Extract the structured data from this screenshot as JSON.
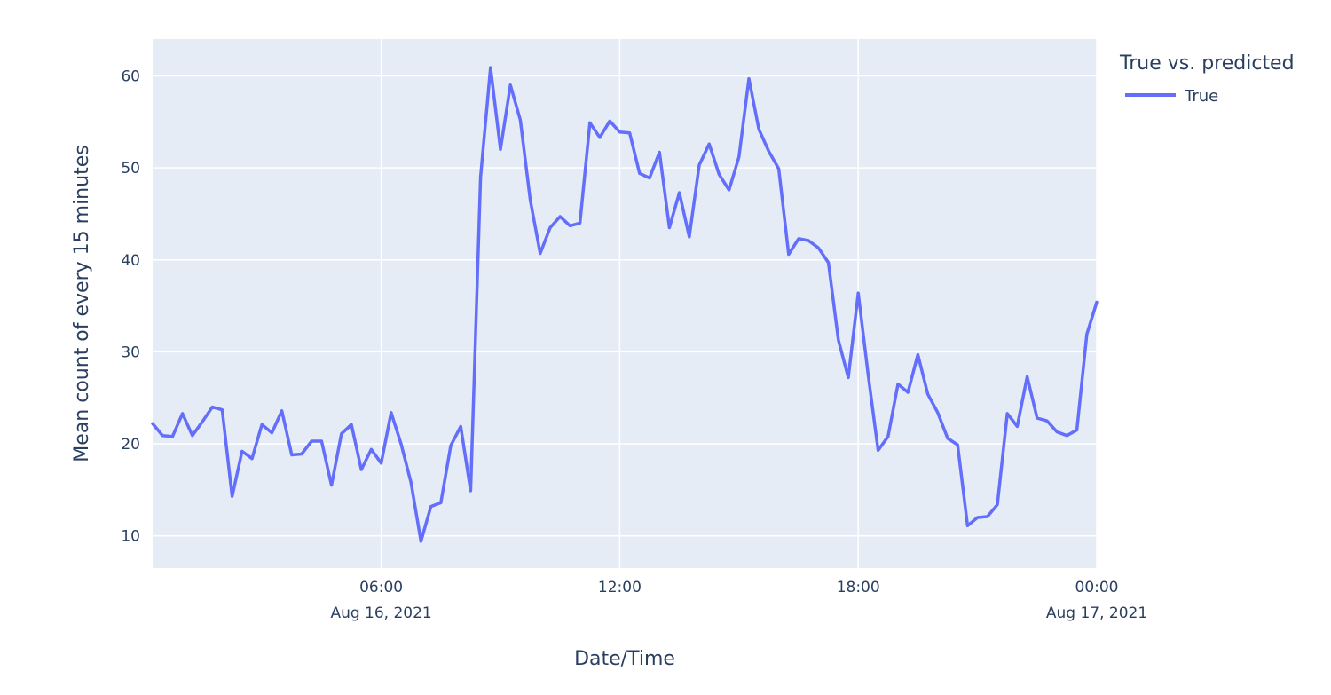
{
  "chart_data": {
    "type": "line",
    "xlabel": "Date/Time",
    "ylabel": "Mean count of every 15 minutes",
    "x_start": "2021-08-16 00:15",
    "x_step_minutes": 15,
    "x_range": [
      "2021-08-16 00:15",
      "2021-08-17 00:00"
    ],
    "ylim": [
      6.5,
      64
    ],
    "y_ticks": [
      10,
      20,
      30,
      40,
      50,
      60
    ],
    "x_ticks": [
      {
        "time": "2021-08-16 06:00",
        "label": "06:00",
        "sublabel": "Aug 16, 2021"
      },
      {
        "time": "2021-08-16 12:00",
        "label": "12:00",
        "sublabel": ""
      },
      {
        "time": "2021-08-16 18:00",
        "label": "18:00",
        "sublabel": ""
      },
      {
        "time": "2021-08-17 00:00",
        "label": "00:00",
        "sublabel": "Aug 17, 2021"
      }
    ],
    "grid": true,
    "legend": {
      "title": "True vs. predicted",
      "placement": "top-right"
    },
    "series": [
      {
        "name": "True",
        "color": "#636efa",
        "values": [
          22.2,
          20.9,
          20.8,
          23.3,
          20.9,
          22.4,
          24.0,
          23.7,
          14.3,
          19.2,
          18.4,
          22.1,
          21.2,
          23.6,
          18.8,
          18.9,
          20.3,
          20.3,
          15.5,
          21.1,
          22.1,
          17.2,
          19.4,
          17.9,
          23.4,
          20.0,
          15.8,
          9.4,
          13.2,
          13.6,
          19.8,
          21.9,
          14.9,
          49.0,
          60.9,
          52.0,
          59.0,
          55.2,
          46.5,
          40.7,
          43.5,
          44.7,
          43.7,
          44.0,
          54.9,
          53.3,
          55.1,
          53.9,
          53.8,
          49.4,
          48.9,
          51.7,
          43.5,
          47.3,
          42.5,
          50.3,
          52.6,
          49.3,
          47.6,
          51.2,
          59.7,
          54.2,
          51.8,
          49.9,
          40.6,
          42.3,
          42.1,
          41.3,
          39.7,
          31.3,
          27.2,
          36.4,
          27.5,
          19.3,
          20.8,
          26.5,
          25.6,
          29.7,
          25.4,
          23.4,
          20.6,
          19.9,
          11.1,
          12.0,
          12.1,
          13.4,
          23.3,
          21.9,
          27.3,
          22.8,
          22.5,
          21.3,
          20.9,
          21.5,
          31.9,
          35.4
        ]
      }
    ]
  }
}
